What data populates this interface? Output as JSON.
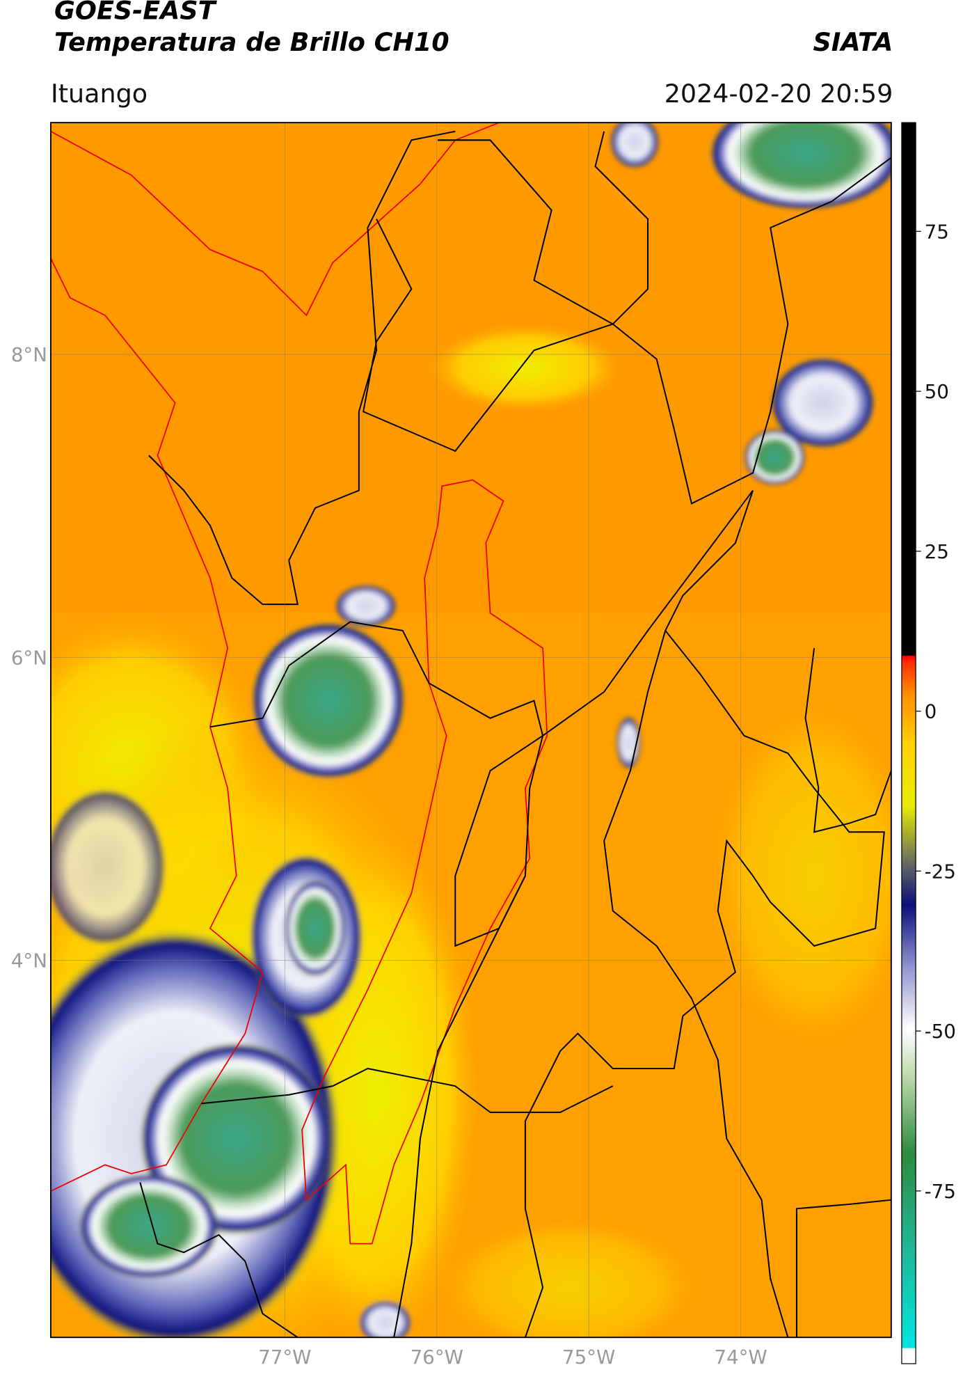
{
  "header": {
    "title": "GOES-EAST",
    "subtitle": "Temperatura de Brillo CH10",
    "brand": "SIATA",
    "location": "Ituango",
    "datetime": "2024-02-20 20:59"
  },
  "map": {
    "lat_range": [
      1.51,
      9.53
    ],
    "lon_range": [
      -78.54,
      -73.01
    ],
    "lat_ticks": [
      {
        "value": 8,
        "label": "8°N"
      },
      {
        "value": 6,
        "label": "6°N"
      },
      {
        "value": 4,
        "label": "4°N"
      }
    ],
    "lon_ticks": [
      {
        "value": -77,
        "label": "77°W"
      },
      {
        "value": -76,
        "label": "76°W"
      },
      {
        "value": -75,
        "label": "75°W"
      },
      {
        "value": -74,
        "label": "74°W"
      }
    ]
  },
  "colorbar": {
    "range": [
      -102,
      92
    ],
    "ticks": [
      75,
      50,
      25,
      0,
      -25,
      -50,
      -75
    ]
  }
}
